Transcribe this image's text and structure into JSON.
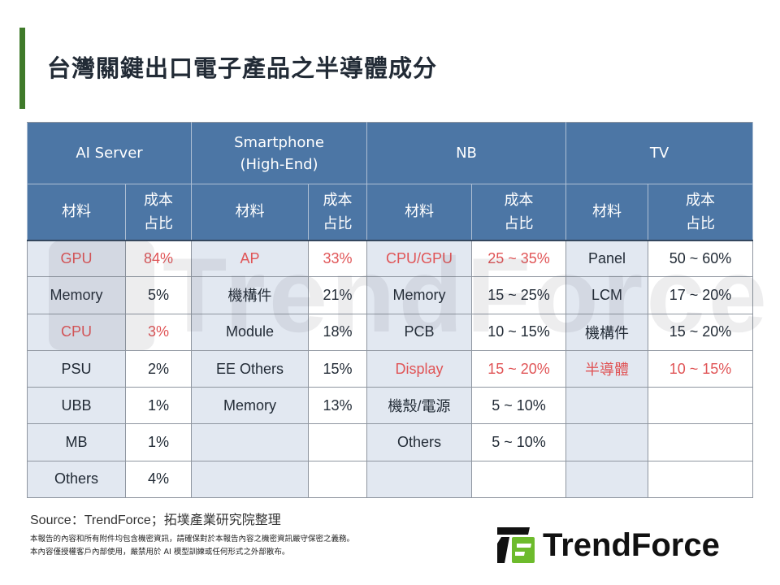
{
  "title": "台灣關鍵出口電子產品之半導體成分",
  "colors": {
    "accent_bar": "#3f7a2a",
    "header_bg": "#4c76a5",
    "material_cell_bg": "#e2e8f1",
    "highlight_text": "#e05456",
    "logo_green": "#6dbb2c"
  },
  "table": {
    "groups": [
      {
        "label": "AI Server"
      },
      {
        "label": "Smartphone\n(High-End)",
        "line1": "Smartphone",
        "line2": "(High-End)"
      },
      {
        "label": "NB"
      },
      {
        "label": "TV"
      }
    ],
    "sub_headers": {
      "material": "材料",
      "cost_share_line1": "成本",
      "cost_share_line2": "占比"
    },
    "rows": [
      [
        {
          "m": "GPU",
          "p": "84%",
          "hl": true
        },
        {
          "m": "AP",
          "p": "33%",
          "hl": true
        },
        {
          "m": "CPU/GPU",
          "p": "25 ~ 35%",
          "hl": true
        },
        {
          "m": "Panel",
          "p": "50 ~ 60%",
          "hl": false
        }
      ],
      [
        {
          "m": "Memory",
          "p": "5%",
          "hl": false
        },
        {
          "m": "機構件",
          "p": "21%",
          "hl": false
        },
        {
          "m": "Memory",
          "p": "15 ~ 25%",
          "hl": false
        },
        {
          "m": "LCM",
          "p": "17 ~ 20%",
          "hl": false
        }
      ],
      [
        {
          "m": "CPU",
          "p": "3%",
          "hl": true
        },
        {
          "m": "Module",
          "p": "18%",
          "hl": false
        },
        {
          "m": "PCB",
          "p": "10 ~ 15%",
          "hl": false
        },
        {
          "m": "機構件",
          "p": "15 ~ 20%",
          "hl": false
        }
      ],
      [
        {
          "m": "PSU",
          "p": "2%",
          "hl": false
        },
        {
          "m": "EE Others",
          "p": "15%",
          "hl": false
        },
        {
          "m": "Display",
          "p": "15 ~ 20%",
          "hl": true
        },
        {
          "m": "半導體",
          "p": "10 ~ 15%",
          "hl": true
        }
      ],
      [
        {
          "m": "UBB",
          "p": "1%",
          "hl": false
        },
        {
          "m": "Memory",
          "p": "13%",
          "hl": false
        },
        {
          "m": "機殼/電源",
          "p": "5 ~ 10%",
          "hl": false
        },
        {
          "m": "",
          "p": "",
          "hl": false
        }
      ],
      [
        {
          "m": "MB",
          "p": "1%",
          "hl": false
        },
        {
          "m": "",
          "p": "",
          "hl": false
        },
        {
          "m": "Others",
          "p": "5 ~ 10%",
          "hl": false
        },
        {
          "m": "",
          "p": "",
          "hl": false
        }
      ],
      [
        {
          "m": "Others",
          "p": "4%",
          "hl": false
        },
        {
          "m": "",
          "p": "",
          "hl": false
        },
        {
          "m": "",
          "p": "",
          "hl": false
        },
        {
          "m": "",
          "p": "",
          "hl": false
        }
      ]
    ]
  },
  "watermark": {
    "text": "TrendForce"
  },
  "footer": {
    "source": "Source：TrendForce；拓墣產業研究院整理",
    "disclaimer_line1": "本報告的內容和所有附件均包含機密資訊，請確保對於本報告內容之機密資訊嚴守保密之義務。",
    "disclaimer_line2": "本內容僅授權客戶內部使用，嚴禁用於 AI 模型訓練或任何形式之外部散布。"
  },
  "logo": {
    "text": "TrendForce",
    "icon": "trendforce-logo-icon"
  }
}
